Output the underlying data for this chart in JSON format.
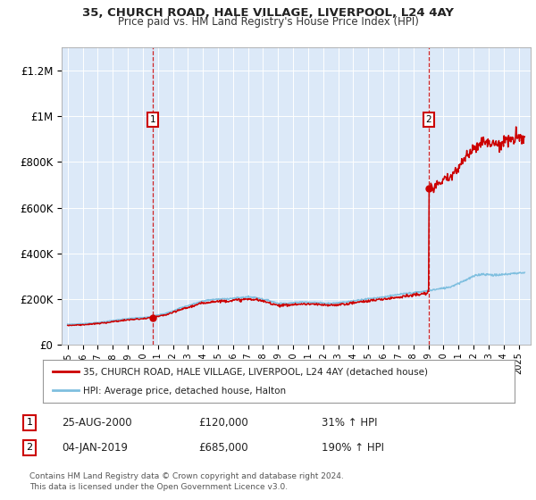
{
  "title1": "35, CHURCH ROAD, HALE VILLAGE, LIVERPOOL, L24 4AY",
  "title2": "Price paid vs. HM Land Registry's House Price Index (HPI)",
  "legend_label1": "35, CHURCH ROAD, HALE VILLAGE, LIVERPOOL, L24 4AY (detached house)",
  "legend_label2": "HPI: Average price, detached house, Halton",
  "annotation1_date": "25-AUG-2000",
  "annotation1_price": "£120,000",
  "annotation1_hpi": "31% ↑ HPI",
  "annotation2_date": "04-JAN-2019",
  "annotation2_price": "£685,000",
  "annotation2_hpi": "190% ↑ HPI",
  "footer": "Contains HM Land Registry data © Crown copyright and database right 2024.\nThis data is licensed under the Open Government Licence v3.0.",
  "ylim": [
    0,
    1300000
  ],
  "yticks": [
    0,
    200000,
    400000,
    600000,
    800000,
    1000000,
    1200000
  ],
  "ytick_labels": [
    "£0",
    "£200K",
    "£400K",
    "£600K",
    "£800K",
    "£1M",
    "£1.2M"
  ],
  "plot_bg_color": "#dce9f8",
  "grid_color": "#ffffff",
  "sale1_x": 2000.65,
  "sale1_y": 120000,
  "sale2_x": 2019.02,
  "sale2_y": 685000,
  "hpi_color": "#7fbfdf",
  "price_color": "#cc0000",
  "annotation_box_color": "#cc0000",
  "xlim_left": 1994.6,
  "xlim_right": 2025.8
}
